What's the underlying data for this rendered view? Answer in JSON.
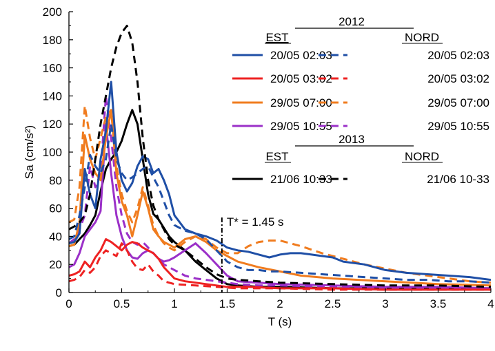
{
  "chart_data": {
    "type": "line",
    "xlabel": "T (s)",
    "ylabel": "Sa (cm/s²)",
    "xlim": [
      0,
      4
    ],
    "ylim": [
      0,
      200
    ],
    "xticks": [
      0,
      0.5,
      1,
      1.5,
      2,
      2.5,
      3,
      3.5,
      4
    ],
    "xtick_labels": [
      "0",
      "0.5",
      "1",
      "1.5",
      "2",
      "2.5",
      "3",
      "3.5",
      "4"
    ],
    "yticks": [
      0,
      20,
      40,
      60,
      80,
      100,
      120,
      140,
      160,
      180,
      200
    ],
    "ytick_labels": [
      "0",
      "20",
      "40",
      "60",
      "80",
      "100",
      "120",
      "140",
      "160",
      "180",
      "200"
    ],
    "grid": false,
    "legend_position": "top-right",
    "legend_groups": [
      {
        "year": "2012",
        "est_header": "EST",
        "nord_header": "NORD"
      },
      {
        "year": "2013",
        "est_header": "EST",
        "nord_header": "NORD"
      }
    ],
    "annotation": {
      "text": "T* = 1.45 s",
      "x": 1.45
    },
    "series": [
      {
        "name": "20/05 02:03",
        "component": "EST",
        "style": "solid",
        "color": "#1f4fa6",
        "x": [
          0,
          0.05,
          0.1,
          0.15,
          0.2,
          0.25,
          0.3,
          0.35,
          0.4,
          0.45,
          0.5,
          0.55,
          0.6,
          0.65,
          0.7,
          0.75,
          0.8,
          0.85,
          0.9,
          0.95,
          1.0,
          1.1,
          1.2,
          1.3,
          1.4,
          1.5,
          1.6,
          1.7,
          1.8,
          1.9,
          2.0,
          2.1,
          2.2,
          2.3,
          2.4,
          2.5,
          2.6,
          2.7,
          2.8,
          2.9,
          3.0,
          3.2,
          3.4,
          3.6,
          3.8,
          4.0
        ],
        "y": [
          35,
          36,
          42,
          88,
          70,
          60,
          95,
          115,
          150,
          100,
          80,
          72,
          78,
          90,
          97,
          95,
          85,
          88,
          80,
          70,
          55,
          45,
          42,
          40,
          37,
          32,
          30,
          29,
          27,
          25,
          27,
          28,
          28,
          27,
          26,
          25,
          22,
          21,
          20,
          18,
          16,
          14,
          13,
          12,
          11,
          9
        ]
      },
      {
        "name": "20/05 02:03",
        "component": "NORD",
        "style": "dashed",
        "color": "#1f4fa6",
        "x": [
          0,
          0.05,
          0.1,
          0.15,
          0.2,
          0.25,
          0.3,
          0.35,
          0.4,
          0.45,
          0.5,
          0.55,
          0.6,
          0.65,
          0.7,
          0.75,
          0.8,
          0.85,
          0.9,
          0.95,
          1.0,
          1.1,
          1.2,
          1.3,
          1.4,
          1.5,
          1.6,
          1.7,
          1.8,
          1.9,
          2.0,
          2.2,
          2.4,
          2.6,
          2.8,
          3.0,
          3.2,
          3.4,
          3.6,
          3.8,
          4.0
        ],
        "y": [
          38,
          40,
          55,
          75,
          98,
          90,
          85,
          95,
          120,
          95,
          85,
          80,
          82,
          85,
          88,
          90,
          82,
          75,
          65,
          55,
          48,
          44,
          42,
          38,
          30,
          22,
          18,
          16,
          16,
          15,
          15,
          14,
          13,
          12,
          11,
          10,
          9,
          9,
          8,
          8,
          7
        ]
      },
      {
        "name": "20/05 03:02",
        "component": "EST",
        "style": "solid",
        "color": "#ee2222",
        "x": [
          0,
          0.05,
          0.1,
          0.15,
          0.2,
          0.25,
          0.3,
          0.35,
          0.4,
          0.45,
          0.5,
          0.55,
          0.6,
          0.65,
          0.7,
          0.75,
          0.8,
          0.85,
          0.9,
          0.95,
          1.0,
          1.1,
          1.2,
          1.3,
          1.4,
          1.5,
          1.7,
          2.0,
          2.5,
          3.0,
          3.5,
          4.0
        ],
        "y": [
          12,
          13,
          15,
          22,
          18,
          25,
          30,
          38,
          36,
          33,
          30,
          34,
          36,
          35,
          32,
          30,
          28,
          24,
          18,
          14,
          10,
          8,
          7,
          6,
          5,
          4,
          4,
          3,
          3,
          2,
          2,
          2
        ]
      },
      {
        "name": "20/05 03:02",
        "component": "NORD",
        "style": "dashed",
        "color": "#ee2222",
        "x": [
          0,
          0.05,
          0.1,
          0.15,
          0.2,
          0.25,
          0.3,
          0.35,
          0.4,
          0.45,
          0.5,
          0.55,
          0.6,
          0.65,
          0.7,
          0.75,
          0.8,
          0.85,
          0.9,
          1.0,
          1.2,
          1.4,
          1.6,
          2.0,
          2.5,
          3.0,
          3.5,
          4.0
        ],
        "y": [
          8,
          9,
          11,
          16,
          14,
          18,
          26,
          30,
          28,
          26,
          35,
          30,
          22,
          17,
          16,
          20,
          15,
          12,
          8,
          6,
          5,
          4,
          3,
          3,
          2,
          2,
          2,
          2
        ]
      },
      {
        "name": "29/05 07:00",
        "component": "EST",
        "style": "solid",
        "color": "#f07c1f",
        "x": [
          0,
          0.05,
          0.1,
          0.15,
          0.2,
          0.25,
          0.3,
          0.35,
          0.4,
          0.45,
          0.5,
          0.55,
          0.6,
          0.65,
          0.7,
          0.75,
          0.8,
          0.85,
          0.9,
          0.95,
          1.0,
          1.1,
          1.2,
          1.3,
          1.4,
          1.5,
          1.6,
          1.8,
          2.0,
          2.2,
          2.5,
          3.0,
          3.5,
          4.0
        ],
        "y": [
          33,
          34,
          50,
          112,
          95,
          85,
          80,
          110,
          130,
          85,
          65,
          55,
          40,
          55,
          72,
          60,
          45,
          40,
          36,
          34,
          32,
          38,
          40,
          36,
          30,
          26,
          22,
          18,
          15,
          12,
          10,
          8,
          6,
          5
        ]
      },
      {
        "name": "29/05 07:00",
        "component": "NORD",
        "style": "dashed",
        "color": "#f07c1f",
        "x": [
          0,
          0.05,
          0.1,
          0.15,
          0.2,
          0.25,
          0.3,
          0.35,
          0.4,
          0.45,
          0.5,
          0.55,
          0.6,
          0.65,
          0.7,
          0.75,
          0.8,
          0.85,
          0.9,
          0.95,
          1.0,
          1.1,
          1.2,
          1.3,
          1.4,
          1.5,
          1.6,
          1.7,
          1.8,
          1.9,
          2.0,
          2.1,
          2.2,
          2.4,
          2.6,
          2.8,
          3.0,
          3.2,
          3.4,
          3.6,
          3.8,
          4.0
        ],
        "y": [
          50,
          52,
          75,
          133,
          110,
          95,
          110,
          125,
          130,
          90,
          70,
          58,
          50,
          60,
          75,
          62,
          48,
          40,
          35,
          32,
          30,
          36,
          40,
          38,
          32,
          28,
          28,
          33,
          36,
          37,
          37,
          35,
          33,
          28,
          24,
          20,
          17,
          14,
          12,
          10,
          8,
          7
        ]
      },
      {
        "name": "29/05 10:55",
        "component": "EST",
        "style": "solid",
        "color": "#9b30c8",
        "x": [
          0,
          0.05,
          0.1,
          0.15,
          0.2,
          0.25,
          0.3,
          0.35,
          0.4,
          0.45,
          0.5,
          0.55,
          0.6,
          0.65,
          0.7,
          0.75,
          0.8,
          0.85,
          0.9,
          0.95,
          1.0,
          1.1,
          1.2,
          1.3,
          1.4,
          1.5,
          1.6,
          1.8,
          2.0,
          2.5,
          3.0,
          3.5,
          4.0
        ],
        "y": [
          18,
          20,
          28,
          40,
          45,
          50,
          58,
          120,
          85,
          55,
          40,
          30,
          25,
          24,
          28,
          30,
          28,
          24,
          22,
          23,
          25,
          30,
          35,
          28,
          20,
          12,
          8,
          7,
          6,
          5,
          4,
          4,
          3
        ]
      },
      {
        "name": "29/05 10:55",
        "component": "NORD",
        "style": "dashed",
        "color": "#9b30c8",
        "x": [
          0,
          0.05,
          0.1,
          0.15,
          0.2,
          0.25,
          0.3,
          0.35,
          0.4,
          0.45,
          0.5,
          0.55,
          0.6,
          0.65,
          0.7,
          0.75,
          0.8,
          0.85,
          0.9,
          1.0,
          1.1,
          1.2,
          1.3,
          1.4,
          1.5,
          1.6,
          1.8,
          2.0,
          2.5,
          3.0,
          3.5,
          4.0
        ],
        "y": [
          35,
          38,
          45,
          55,
          90,
          75,
          85,
          140,
          110,
          75,
          55,
          42,
          36,
          34,
          36,
          32,
          28,
          24,
          20,
          16,
          12,
          10,
          9,
          8,
          7,
          6,
          5,
          5,
          4,
          3,
          3,
          3
        ]
      },
      {
        "name": "21/06 10:33",
        "component": "EST",
        "style": "solid",
        "color": "#000000",
        "x": [
          0,
          0.05,
          0.1,
          0.15,
          0.2,
          0.25,
          0.3,
          0.35,
          0.4,
          0.45,
          0.5,
          0.55,
          0.6,
          0.65,
          0.7,
          0.75,
          0.8,
          0.85,
          0.9,
          0.95,
          1.0,
          1.1,
          1.2,
          1.3,
          1.4,
          1.5,
          1.6,
          1.8,
          2.0,
          2.5,
          3.0,
          3.5,
          4.0
        ],
        "y": [
          33,
          34,
          38,
          42,
          48,
          55,
          72,
          88,
          95,
          100,
          108,
          120,
          130,
          120,
          95,
          70,
          56,
          52,
          46,
          40,
          36,
          30,
          22,
          16,
          10,
          6,
          5,
          4,
          4,
          3,
          3,
          3,
          3
        ]
      },
      {
        "name": "21/06 10-33",
        "component": "NORD",
        "style": "dashed",
        "color": "#000000",
        "x": [
          0,
          0.05,
          0.1,
          0.15,
          0.2,
          0.25,
          0.3,
          0.35,
          0.4,
          0.45,
          0.5,
          0.55,
          0.6,
          0.65,
          0.7,
          0.75,
          0.8,
          0.85,
          0.9,
          0.95,
          1.0,
          1.1,
          1.2,
          1.3,
          1.4,
          1.5,
          1.6,
          1.8,
          2.0,
          2.5,
          3.0,
          3.5,
          4.0
        ],
        "y": [
          45,
          47,
          50,
          55,
          70,
          95,
          120,
          140,
          160,
          175,
          185,
          190,
          178,
          150,
          110,
          80,
          62,
          52,
          45,
          38,
          34,
          30,
          24,
          18,
          13,
          10,
          9,
          8,
          7,
          6,
          5,
          5,
          4
        ]
      }
    ]
  }
}
